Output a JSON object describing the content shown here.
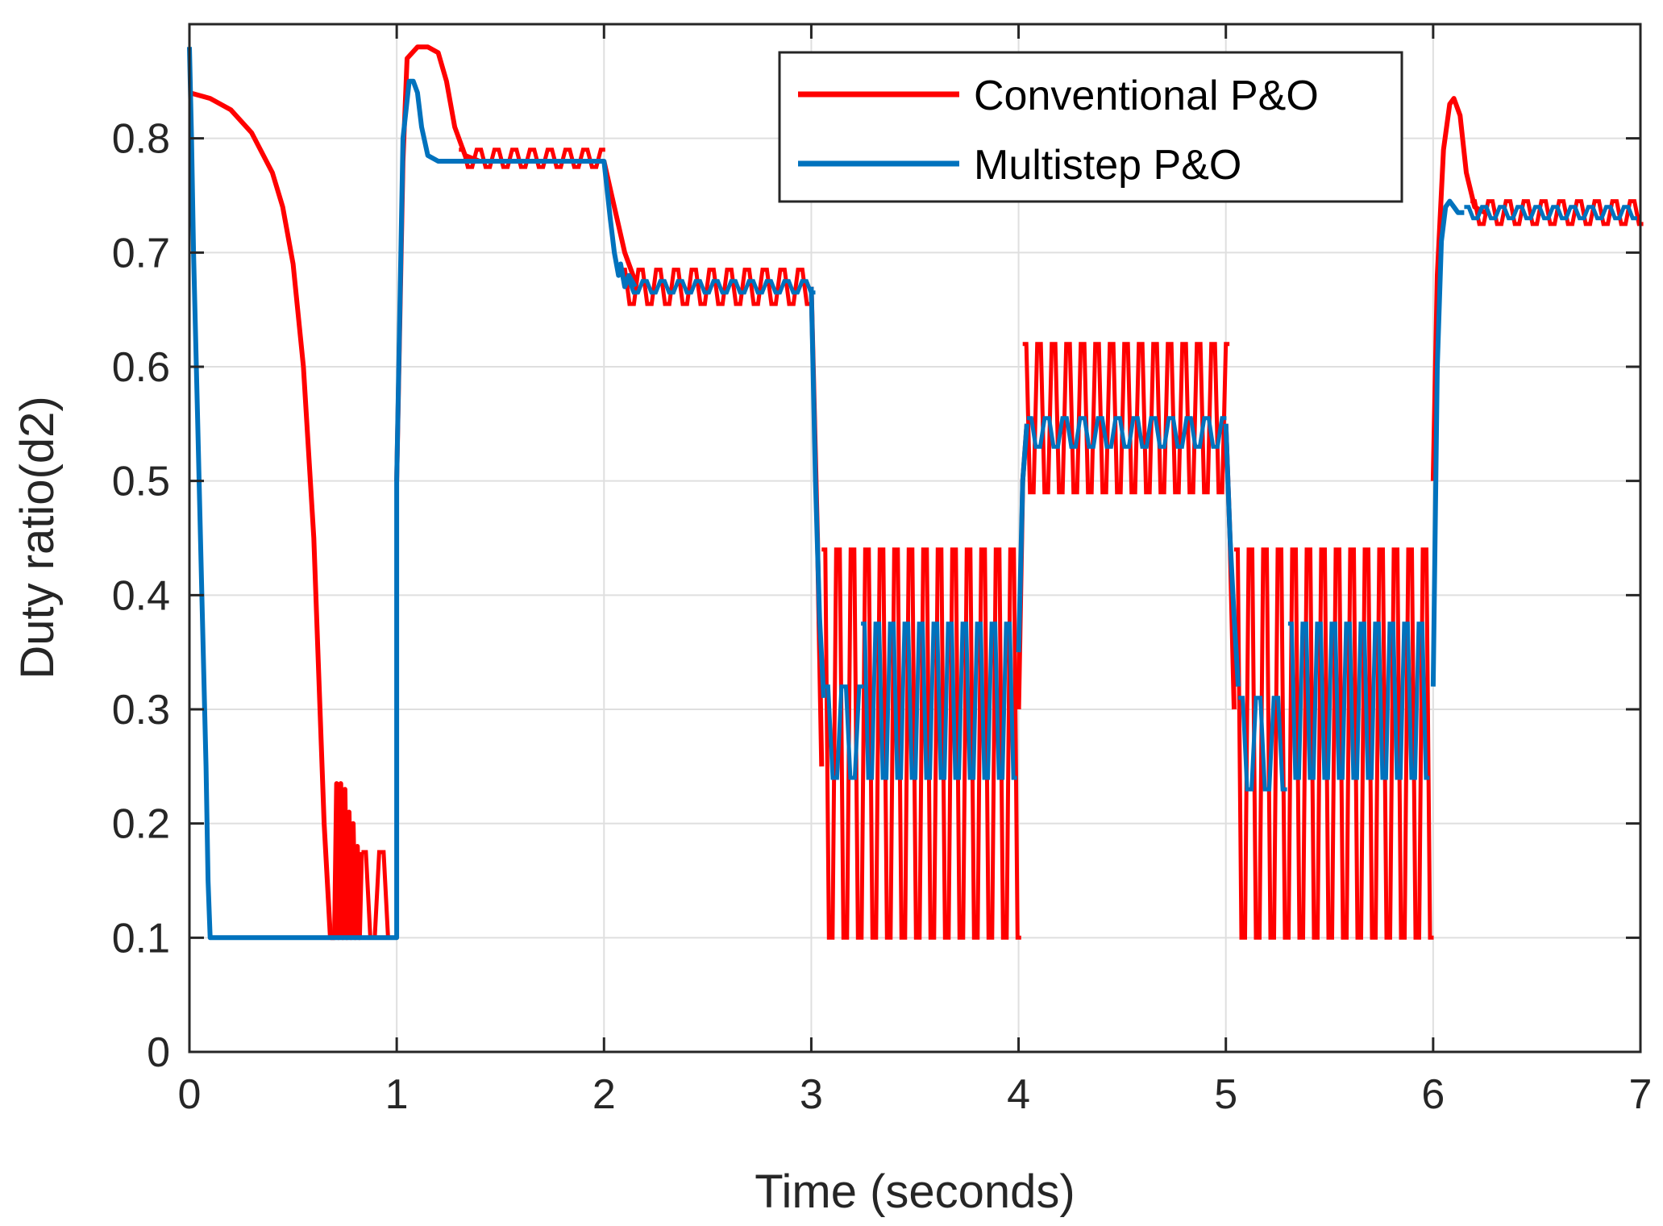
{
  "chart_data": {
    "type": "line",
    "title": "",
    "xlabel": "Time (seconds)",
    "ylabel": "Duty ratio(d2)",
    "xlim": [
      0,
      7
    ],
    "ylim": [
      0,
      0.9
    ],
    "grid": true,
    "legend_position": "top-right",
    "x_ticks": [
      0,
      1,
      2,
      3,
      4,
      5,
      6,
      7
    ],
    "x_tick_labels": [
      "0",
      "1",
      "2",
      "3",
      "4",
      "5",
      "6",
      "7"
    ],
    "y_ticks": [
      0,
      0.1,
      0.2,
      0.3,
      0.4,
      0.5,
      0.6,
      0.7,
      0.8
    ],
    "y_tick_labels": [
      "0",
      "0.1",
      "0.2",
      "0.3",
      "0.4",
      "0.5",
      "0.6",
      "0.7",
      "0.8"
    ],
    "colors": {
      "conventional": "#ff0000",
      "multistep": "#0072bd",
      "grid": "#dfdfdf",
      "axis": "#262626"
    },
    "series": [
      {
        "name": "Conventional P&O",
        "key": "conventional",
        "segments": [
          {
            "kind": "line",
            "x": [
              0,
              0.1,
              0.2,
              0.3,
              0.4,
              0.45,
              0.5,
              0.55,
              0.6,
              0.62,
              0.65,
              0.68
            ],
            "y": [
              0.84,
              0.835,
              0.825,
              0.805,
              0.77,
              0.74,
              0.69,
              0.6,
              0.45,
              0.35,
              0.2,
              0.1
            ]
          },
          {
            "kind": "line",
            "x": [
              0.68,
              0.7,
              0.71,
              0.72,
              0.73,
              0.74,
              0.75,
              0.76,
              0.77,
              0.78,
              0.79,
              0.8,
              0.81,
              0.82,
              0.83
            ],
            "y": [
              0.1,
              0.1,
              0.235,
              0.1,
              0.235,
              0.1,
              0.23,
              0.1,
              0.21,
              0.1,
              0.2,
              0.1,
              0.18,
              0.1,
              0.175
            ]
          },
          {
            "kind": "band",
            "x0": 0.83,
            "x1": 1.0,
            "low": 0.1,
            "high": 0.175
          },
          {
            "kind": "line",
            "x": [
              1.0,
              1.03,
              1.05,
              1.1,
              1.15,
              1.2,
              1.24,
              1.28,
              1.33,
              1.4
            ],
            "y": [
              0.5,
              0.78,
              0.87,
              0.88,
              0.88,
              0.875,
              0.85,
              0.81,
              0.785,
              0.78
            ]
          },
          {
            "kind": "band",
            "x0": 1.3,
            "x1": 2.0,
            "low": 0.775,
            "high": 0.79
          },
          {
            "kind": "line",
            "x": [
              2.0,
              2.05,
              2.1,
              2.15
            ],
            "y": [
              0.78,
              0.74,
              0.7,
              0.675
            ]
          },
          {
            "kind": "band",
            "x0": 2.08,
            "x1": 3.0,
            "low": 0.655,
            "high": 0.685
          },
          {
            "kind": "line",
            "x": [
              3.0,
              3.03,
              3.05
            ],
            "y": [
              0.67,
              0.45,
              0.25
            ]
          },
          {
            "kind": "band",
            "x0": 3.05,
            "x1": 4.0,
            "low": 0.1,
            "high": 0.44
          },
          {
            "kind": "line",
            "x": [
              4.0,
              4.02,
              4.04
            ],
            "y": [
              0.3,
              0.5,
              0.55
            ]
          },
          {
            "kind": "band",
            "x0": 4.02,
            "x1": 5.0,
            "low": 0.49,
            "high": 0.62
          },
          {
            "kind": "line",
            "x": [
              5.0,
              5.02,
              5.04
            ],
            "y": [
              0.55,
              0.45,
              0.3
            ]
          },
          {
            "kind": "band",
            "x0": 5.04,
            "x1": 6.0,
            "low": 0.1,
            "high": 0.44
          },
          {
            "kind": "line",
            "x": [
              6.0,
              6.02,
              6.05,
              6.08,
              6.1,
              6.13,
              6.16,
              6.2,
              6.25
            ],
            "y": [
              0.5,
              0.68,
              0.79,
              0.83,
              0.835,
              0.82,
              0.77,
              0.74,
              0.735
            ]
          },
          {
            "kind": "band",
            "x0": 6.18,
            "x1": 7.0,
            "low": 0.725,
            "high": 0.745
          }
        ]
      },
      {
        "name": "Multistep P&O",
        "key": "multistep",
        "segments": [
          {
            "kind": "line",
            "x": [
              0,
              0.01,
              0.02,
              0.04,
              0.06,
              0.08,
              0.09,
              0.1,
              1.0,
              1.0,
              1.03,
              1.06,
              1.08,
              1.1,
              1.12,
              1.15,
              1.2,
              1.3,
              1.4,
              2.0,
              2.03,
              2.05,
              2.07,
              2.08,
              2.1,
              2.12,
              2.15
            ],
            "y": [
              0.88,
              0.8,
              0.7,
              0.55,
              0.4,
              0.25,
              0.15,
              0.1,
              0.1,
              0.5,
              0.8,
              0.85,
              0.85,
              0.84,
              0.81,
              0.785,
              0.78,
              0.78,
              0.78,
              0.78,
              0.73,
              0.7,
              0.68,
              0.69,
              0.67,
              0.68,
              0.67
            ]
          },
          {
            "kind": "band",
            "x0": 2.1,
            "x1": 3.0,
            "low": 0.665,
            "high": 0.675
          },
          {
            "kind": "line",
            "x": [
              3.0,
              3.02,
              3.04,
              3.06
            ],
            "y": [
              0.67,
              0.5,
              0.38,
              0.31
            ]
          },
          {
            "kind": "band",
            "x0": 3.06,
            "x1": 3.24,
            "low": 0.24,
            "high": 0.32
          },
          {
            "kind": "band",
            "x0": 3.24,
            "x1": 4.0,
            "low": 0.24,
            "high": 0.375
          },
          {
            "kind": "line",
            "x": [
              4.0,
              4.02,
              4.04
            ],
            "y": [
              0.35,
              0.5,
              0.55
            ]
          },
          {
            "kind": "band",
            "x0": 4.04,
            "x1": 5.0,
            "low": 0.53,
            "high": 0.555
          },
          {
            "kind": "line",
            "x": [
              5.0,
              5.02,
              5.04,
              5.06
            ],
            "y": [
              0.55,
              0.45,
              0.38,
              0.32
            ]
          },
          {
            "kind": "band",
            "x0": 5.06,
            "x1": 5.3,
            "low": 0.23,
            "high": 0.31
          },
          {
            "kind": "band",
            "x0": 5.3,
            "x1": 6.0,
            "low": 0.24,
            "high": 0.375
          },
          {
            "kind": "line",
            "x": [
              6.0,
              6.02,
              6.04,
              6.06,
              6.08,
              6.1,
              6.12,
              6.15
            ],
            "y": [
              0.32,
              0.6,
              0.71,
              0.74,
              0.745,
              0.74,
              0.735,
              0.735
            ]
          },
          {
            "kind": "band",
            "x0": 6.15,
            "x1": 7.0,
            "low": 0.73,
            "high": 0.74
          }
        ]
      }
    ]
  }
}
